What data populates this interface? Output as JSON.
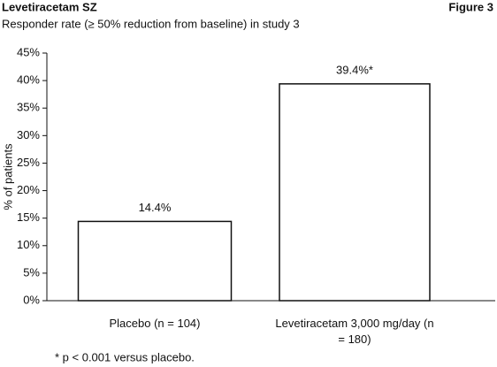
{
  "chart_data": {
    "type": "bar",
    "title": "Levetiracetam SZ",
    "figure_label": "Figure 3",
    "subtitle": "Responder rate (≥ 50% reduction from baseline) in study 3",
    "y_label": "% of patients",
    "categories": [
      "Placebo (n = 104)",
      "Levetiracetam 3,000 mg/day (n = 180)"
    ],
    "values": [
      14.4,
      39.4
    ],
    "value_labels": [
      "14.4%",
      "39.4%*"
    ],
    "color": "#ffffff",
    "ylim": [
      0,
      45
    ],
    "yticks": [
      {
        "value": 0,
        "label": "0%"
      },
      {
        "value": 5,
        "label": "5%"
      },
      {
        "value": 10,
        "label": "10%"
      },
      {
        "value": 15,
        "label": "15%"
      },
      {
        "value": 20,
        "label": "20%"
      },
      {
        "value": 25,
        "label": "25%"
      },
      {
        "value": 30,
        "label": "30%"
      },
      {
        "value": 35,
        "label": "35%"
      },
      {
        "value": 40,
        "label": "40%"
      },
      {
        "value": 45,
        "label": "45%"
      }
    ],
    "grid": false,
    "footnote": "* p < 0.001 versus placebo."
  }
}
